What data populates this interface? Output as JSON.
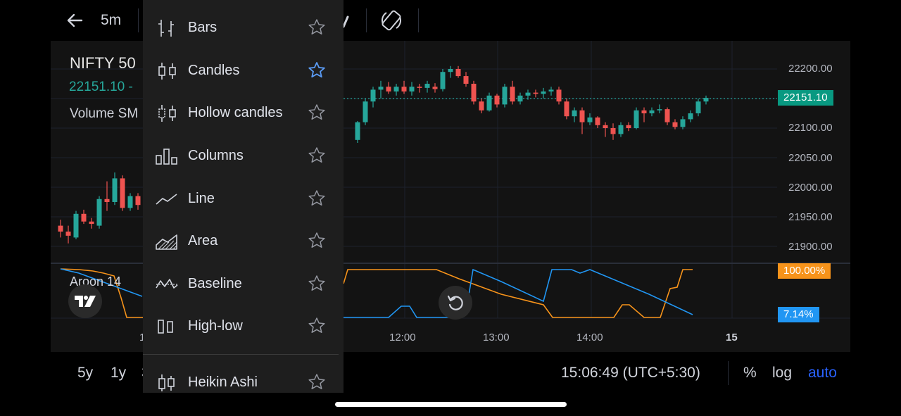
{
  "header": {
    "timeframe": "5m"
  },
  "symbol": {
    "name": "NIFTY 50",
    "price_line": "22151.10 -",
    "volume_label": "Volume SM",
    "aroon_label": "Aroon 14"
  },
  "chart_type_menu": {
    "items": [
      {
        "label": "Bars",
        "icon": "bars-icon",
        "favorite": false
      },
      {
        "label": "Candles",
        "icon": "candles-icon",
        "favorite": true
      },
      {
        "label": "Hollow candles",
        "icon": "hollow-candles-icon",
        "favorite": false
      },
      {
        "label": "Columns",
        "icon": "columns-icon",
        "favorite": false
      },
      {
        "label": "Line",
        "icon": "line-icon",
        "favorite": false
      },
      {
        "label": "Area",
        "icon": "area-icon",
        "favorite": false
      },
      {
        "label": "Baseline",
        "icon": "baseline-icon",
        "favorite": false
      },
      {
        "label": "High-low",
        "icon": "high-low-icon",
        "favorite": false
      },
      {
        "label": "Heikin Ashi",
        "icon": "heikin-ashi-icon",
        "favorite": false
      }
    ]
  },
  "price_axis": {
    "ticks": [
      "22200.00",
      "22150.00",
      "22100.00",
      "22050.00",
      "22000.00",
      "21950.00",
      "21900.00"
    ],
    "last_price": "22151.10",
    "aroon_up": "100.00%",
    "aroon_down": "7.14%"
  },
  "time_axis": {
    "ticks": [
      "1",
      "12:00",
      "13:00",
      "14:00",
      "15"
    ]
  },
  "bottom_bar": {
    "range_5y": "5y",
    "range_1y": "1y",
    "range_partial": "3",
    "clock": "15:06:49 (UTC+5:30)",
    "percent": "%",
    "log": "log",
    "auto": "auto"
  },
  "colors": {
    "up": "#26a69a",
    "down": "#ef5350",
    "aroon_up": "#f7931a",
    "aroon_down": "#2196f3",
    "accent": "#2962ff",
    "favorite_star": "#5b9cf6"
  },
  "chart_data": {
    "type": "candlestick",
    "interval": "5m",
    "y_axis_range": [
      21880,
      22230
    ],
    "series": [
      {
        "name": "NIFTY 50",
        "ohlc": [
          [
            21935,
            21945,
            21915,
            21925
          ],
          [
            21925,
            21935,
            21905,
            21918
          ],
          [
            21915,
            21960,
            21912,
            21955
          ],
          [
            21955,
            21962,
            21938,
            21942
          ],
          [
            21942,
            21948,
            21930,
            21938
          ],
          [
            21935,
            21985,
            21930,
            21980
          ],
          [
            21980,
            22010,
            21960,
            21975
          ],
          [
            21975,
            22025,
            21970,
            22015
          ],
          [
            22015,
            22020,
            21960,
            21965
          ],
          [
            21965,
            21990,
            21960,
            21985
          ],
          [
            21985,
            21990,
            21962,
            21970
          ],
          [
            21970,
            21992,
            21965,
            21985
          ],
          [
            21980,
            21988,
            21972,
            21976
          ],
          [
            22080,
            22112,
            22075,
            22110
          ],
          [
            22110,
            22150,
            22105,
            22145
          ],
          [
            22145,
            22170,
            22135,
            22165
          ],
          [
            22165,
            22180,
            22150,
            22170
          ],
          [
            22170,
            22178,
            22158,
            22162
          ],
          [
            22162,
            22175,
            22155,
            22170
          ],
          [
            22170,
            22180,
            22158,
            22162
          ],
          [
            22162,
            22178,
            22155,
            22170
          ],
          [
            22170,
            22175,
            22160,
            22168
          ],
          [
            22168,
            22180,
            22160,
            22175
          ],
          [
            22170,
            22176,
            22160,
            22166
          ],
          [
            22166,
            22200,
            22162,
            22195
          ],
          [
            22195,
            22205,
            22185,
            22200
          ],
          [
            22200,
            22205,
            22185,
            22188
          ],
          [
            22188,
            22195,
            22170,
            22175
          ],
          [
            22175,
            22180,
            22140,
            22145
          ],
          [
            22145,
            22150,
            22125,
            22130
          ],
          [
            22130,
            22160,
            22128,
            22155
          ],
          [
            22155,
            22158,
            22135,
            22140
          ],
          [
            22140,
            22175,
            22135,
            22170
          ],
          [
            22170,
            22180,
            22140,
            22145
          ],
          [
            22145,
            22160,
            22140,
            22155
          ],
          [
            22155,
            22165,
            22148,
            22160
          ],
          [
            22160,
            22165,
            22152,
            22158
          ],
          [
            22158,
            22168,
            22150,
            22162
          ],
          [
            22162,
            22170,
            22155,
            22165
          ],
          [
            22165,
            22170,
            22140,
            22145
          ],
          [
            22145,
            22150,
            22115,
            22120
          ],
          [
            22120,
            22135,
            22110,
            22130
          ],
          [
            22130,
            22135,
            22090,
            22110
          ],
          [
            22110,
            22125,
            22105,
            22118
          ],
          [
            22118,
            22120,
            22100,
            22105
          ],
          [
            22105,
            22110,
            22085,
            22100
          ],
          [
            22100,
            22108,
            22080,
            22090
          ],
          [
            22090,
            22110,
            22085,
            22105
          ],
          [
            22105,
            22110,
            22095,
            22100
          ],
          [
            22100,
            22135,
            22098,
            22130
          ],
          [
            22130,
            22135,
            22110,
            22125
          ],
          [
            22125,
            22135,
            22120,
            22130
          ],
          [
            22130,
            22140,
            22125,
            22132
          ],
          [
            22132,
            22135,
            22105,
            22110
          ],
          [
            22110,
            22115,
            22098,
            22102
          ],
          [
            22102,
            22120,
            22098,
            22115
          ],
          [
            22115,
            22130,
            22110,
            22125
          ],
          [
            22125,
            22150,
            22120,
            22145
          ],
          [
            22145,
            22155,
            22140,
            22151.1
          ]
        ]
      }
    ],
    "indicators": {
      "aroon_length": 14,
      "aroon_up_value": 100.0,
      "aroon_down_value": 7.14
    }
  }
}
